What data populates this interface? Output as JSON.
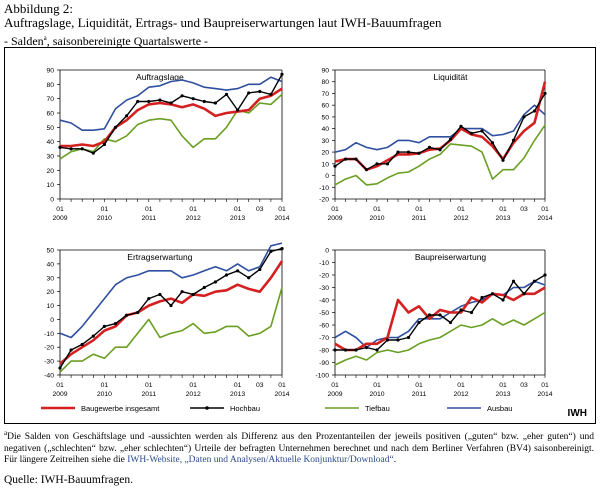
{
  "caption": "Abbildung 2:",
  "title": "Auftragslage, Liquidität, Ertrags- und Baupreiserwartungen laut IWH-Bauumfragen",
  "subtitle_pre": "- Salden",
  "subtitle_sup": "a",
  "subtitle_post": ", saisonbereinigte Quartalswerte -",
  "legend": [
    {
      "label": "Baugewerbe insgesamt",
      "color": "#d42020"
    },
    {
      "label": "Hochbau",
      "color": "#000000"
    },
    {
      "label": "Tiefbau",
      "color": "#6a9f23"
    },
    {
      "label": "Ausbau",
      "color": "#2f4f9f"
    }
  ],
  "brand": "IWH",
  "footnote": {
    "marker": "a",
    "text": "Die Salden von Geschäftslage und -aussichten werden als Differenz aus den Prozentanteilen der jeweils positiven („guten“ bzw. „eher guten“) und negativen („schlechten“ bzw. „eher schlechten“) Urteile der befragten Unternehmen berechnet und nach dem Berliner Verfahren (BV4) saisonbereinigt. Für längere Zeitreihen siehe die ",
    "link": "IWH-Website, „Daten und Analysen/Aktuelle Konjunktur/Download“",
    "end": "."
  },
  "source": "Quelle: IWH-Bauumfragen.",
  "chart_data": [
    {
      "type": "line",
      "title": "Auftragslage",
      "ylim": [
        0,
        90
      ],
      "yticks": [
        0,
        10,
        20,
        30,
        40,
        50,
        60,
        70,
        80,
        90
      ],
      "x_ticks": [
        {
          "q": "01",
          "y": "2009"
        },
        {
          "q": "01",
          "y": "2010"
        },
        {
          "q": "01",
          "y": "2011"
        },
        {
          "q": "01",
          "y": "2012"
        },
        {
          "q": "01",
          "y": "2013"
        },
        {
          "q": "03",
          "y": ""
        },
        {
          "q": "01",
          "y": "2014"
        }
      ],
      "x": [
        "I/2009",
        "II/2009",
        "III/2009",
        "IV/2009",
        "I/2010",
        "II/2010",
        "III/2010",
        "IV/2010",
        "I/2011",
        "II/2011",
        "III/2011",
        "IV/2011",
        "I/2012",
        "II/2012",
        "III/2012",
        "IV/2012",
        "I/2013",
        "II/2013",
        "III/2013",
        "IV/2013",
        "I/2014"
      ],
      "series": [
        {
          "name": "Baugewerbe insgesamt",
          "values": [
            37,
            37,
            38,
            37,
            40,
            50,
            55,
            62,
            66,
            67,
            66,
            64,
            66,
            63,
            58,
            60,
            61,
            62,
            70,
            72,
            77
          ]
        },
        {
          "name": "Hochbau",
          "values": [
            36,
            35,
            35,
            32,
            38,
            50,
            58,
            68,
            68,
            69,
            67,
            72,
            70,
            68,
            67,
            73,
            62,
            74,
            75,
            73,
            87
          ]
        },
        {
          "name": "Tiefbau",
          "values": [
            28,
            33,
            35,
            33,
            42,
            40,
            44,
            52,
            55,
            56,
            55,
            44,
            36,
            42,
            42,
            50,
            62,
            60,
            67,
            66,
            73
          ]
        },
        {
          "name": "Ausbau",
          "values": [
            55,
            53,
            48,
            48,
            49,
            63,
            69,
            72,
            78,
            79,
            82,
            83,
            81,
            78,
            77,
            76,
            77,
            80,
            80,
            85,
            82
          ]
        }
      ]
    },
    {
      "type": "line",
      "title": "Liquidität",
      "ylim": [
        -20,
        90
      ],
      "yticks": [
        -20,
        -10,
        0,
        10,
        20,
        30,
        40,
        50,
        60,
        70,
        80,
        90
      ],
      "x_ticks": [
        {
          "q": "01",
          "y": "2009"
        },
        {
          "q": "01",
          "y": "2010"
        },
        {
          "q": "01",
          "y": "2011"
        },
        {
          "q": "01",
          "y": "2012"
        },
        {
          "q": "01",
          "y": "2013"
        },
        {
          "q": "03",
          "y": ""
        },
        {
          "q": "01",
          "y": "2014"
        }
      ],
      "x": [
        "I/2009",
        "II/2009",
        "III/2009",
        "IV/2009",
        "I/2010",
        "II/2010",
        "III/2010",
        "IV/2010",
        "I/2011",
        "II/2011",
        "III/2011",
        "IV/2011",
        "I/2012",
        "II/2012",
        "III/2012",
        "IV/2012",
        "I/2013",
        "II/2013",
        "III/2013",
        "IV/2013",
        "I/2014"
      ],
      "series": [
        {
          "name": "Baugewerbe insgesamt",
          "values": [
            12,
            14,
            14,
            5,
            8,
            13,
            18,
            18,
            19,
            22,
            23,
            30,
            40,
            35,
            33,
            25,
            14,
            28,
            38,
            45,
            80
          ]
        },
        {
          "name": "Hochbau",
          "values": [
            8,
            14,
            14,
            5,
            10,
            10,
            20,
            20,
            19,
            24,
            22,
            31,
            42,
            36,
            38,
            28,
            13,
            30,
            50,
            55,
            70
          ]
        },
        {
          "name": "Tiefbau",
          "values": [
            -8,
            -3,
            0,
            -8,
            -7,
            -2,
            2,
            3,
            8,
            14,
            18,
            27,
            26,
            25,
            20,
            -3,
            5,
            5,
            15,
            30,
            43
          ]
        },
        {
          "name": "Ausbau",
          "values": [
            20,
            22,
            28,
            24,
            22,
            24,
            30,
            30,
            28,
            33,
            33,
            33,
            40,
            40,
            40,
            34,
            35,
            38,
            52,
            60,
            52
          ]
        }
      ]
    },
    {
      "type": "line",
      "title": "Ertragserwartung",
      "ylim": [
        -40,
        50
      ],
      "yticks": [
        -40,
        -30,
        -20,
        -10,
        0,
        10,
        20,
        30,
        40,
        50
      ],
      "x_ticks": [
        {
          "q": "01",
          "y": "2009"
        },
        {
          "q": "01",
          "y": "2010"
        },
        {
          "q": "01",
          "y": "2011"
        },
        {
          "q": "01",
          "y": "2012"
        },
        {
          "q": "01",
          "y": "2013"
        },
        {
          "q": "03",
          "y": ""
        },
        {
          "q": "01",
          "y": "2014"
        }
      ],
      "x": [
        "I/2009",
        "II/2009",
        "III/2009",
        "IV/2009",
        "I/2010",
        "II/2010",
        "III/2010",
        "IV/2010",
        "I/2011",
        "II/2011",
        "III/2011",
        "IV/2011",
        "I/2012",
        "II/2012",
        "III/2012",
        "IV/2012",
        "I/2013",
        "II/2013",
        "III/2013",
        "IV/2013",
        "I/2014"
      ],
      "series": [
        {
          "name": "Baugewerbe insgesamt",
          "values": [
            -32,
            -25,
            -20,
            -15,
            -8,
            -5,
            3,
            5,
            10,
            13,
            15,
            12,
            18,
            17,
            20,
            21,
            25,
            22,
            20,
            30,
            42
          ]
        },
        {
          "name": "Hochbau",
          "values": [
            -35,
            -22,
            -18,
            -12,
            -5,
            -3,
            3,
            5,
            15,
            18,
            10,
            20,
            18,
            23,
            27,
            32,
            35,
            30,
            36,
            49,
            51
          ]
        },
        {
          "name": "Tiefbau",
          "values": [
            -38,
            -30,
            -30,
            -25,
            -28,
            -20,
            -20,
            -10,
            0,
            -13,
            -10,
            -8,
            -3,
            -10,
            -9,
            -5,
            -5,
            -12,
            -10,
            -5,
            23
          ]
        },
        {
          "name": "Ausbau",
          "values": [
            -10,
            -13,
            -5,
            5,
            15,
            25,
            30,
            32,
            35,
            35,
            35,
            30,
            32,
            35,
            38,
            35,
            40,
            35,
            38,
            53,
            55
          ]
        }
      ]
    },
    {
      "type": "line",
      "title": "Baupreiserwartung",
      "ylim": [
        -100,
        0
      ],
      "yticks": [
        -100,
        -90,
        -80,
        -70,
        -60,
        -50,
        -40,
        -30,
        -20,
        -10,
        0
      ],
      "x_ticks": [
        {
          "q": "01",
          "y": "2009"
        },
        {
          "q": "01",
          "y": "2010"
        },
        {
          "q": "01",
          "y": "2011"
        },
        {
          "q": "01",
          "y": "2012"
        },
        {
          "q": "01",
          "y": "2013"
        },
        {
          "q": "03",
          "y": ""
        },
        {
          "q": "01",
          "y": "2014"
        }
      ],
      "x": [
        "I/2009",
        "II/2009",
        "III/2009",
        "IV/2009",
        "I/2010",
        "II/2010",
        "III/2010",
        "IV/2010",
        "I/2011",
        "II/2011",
        "III/2011",
        "IV/2011",
        "I/2012",
        "II/2012",
        "III/2012",
        "IV/2012",
        "I/2013",
        "II/2013",
        "III/2013",
        "IV/2013",
        "I/2014"
      ],
      "series": [
        {
          "name": "Baugewerbe insgesamt",
          "values": [
            -75,
            -80,
            -80,
            -75,
            -75,
            -70,
            -40,
            -50,
            -45,
            -55,
            -48,
            -50,
            -50,
            -38,
            -42,
            -35,
            -36,
            -40,
            -35,
            -35,
            -30
          ]
        },
        {
          "name": "Hochbau",
          "values": [
            -80,
            -80,
            -80,
            -78,
            -80,
            -72,
            -72,
            -70,
            -58,
            -52,
            -52,
            -58,
            -48,
            -50,
            -38,
            -35,
            -40,
            -25,
            -35,
            -25,
            -20
          ]
        },
        {
          "name": "Tiefbau",
          "values": [
            -92,
            -88,
            -85,
            -88,
            -82,
            -80,
            -82,
            -80,
            -75,
            -72,
            -70,
            -65,
            -60,
            -62,
            -60,
            -55,
            -60,
            -56,
            -60,
            -55,
            -50
          ]
        },
        {
          "name": "Ausbau",
          "values": [
            -70,
            -65,
            -70,
            -78,
            -72,
            -70,
            -70,
            -65,
            -55,
            -55,
            -55,
            -50,
            -45,
            -42,
            -40,
            -35,
            -36,
            -30,
            -30,
            -25,
            -28
          ]
        }
      ]
    }
  ]
}
